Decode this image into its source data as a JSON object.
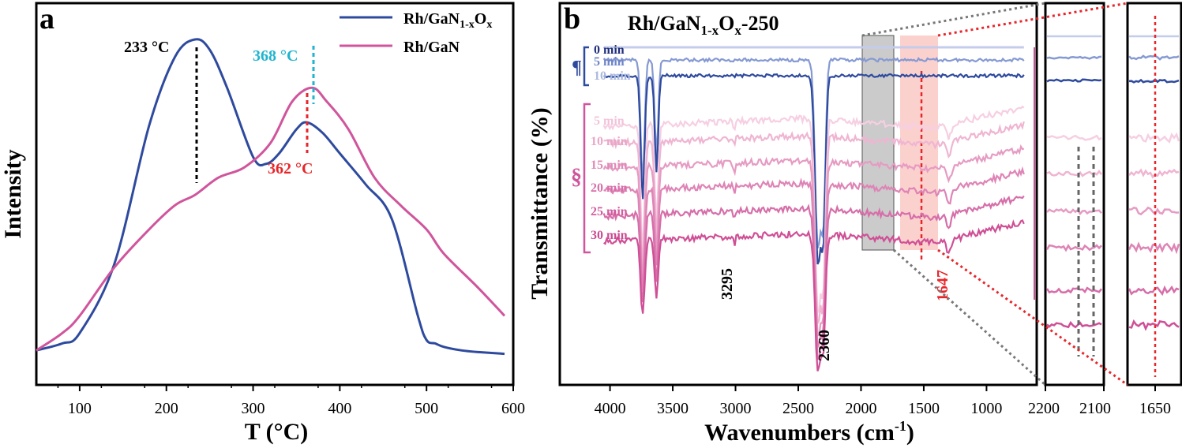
{
  "panel_a": {
    "letter": "a",
    "xlabel": "T (°C)",
    "ylabel": "Intensity",
    "xticks": [
      "100",
      "200",
      "300",
      "400",
      "500",
      "600"
    ],
    "legend": [
      {
        "label": "Rh/GaN1-xOx",
        "color": "#2e4a9e"
      },
      {
        "label": "Rh/GaN",
        "color": "#d0559c"
      }
    ],
    "annotations": {
      "peak_233": "233 °C",
      "peak_368": "368 °C",
      "peak_362": "362 °C"
    }
  },
  "panel_b": {
    "letter": "b",
    "title": "Rh/GaN1-xOx-250",
    "xlabel": "Wavenumbers (cm-1)",
    "ylabel": "Transmittance (%)",
    "xticks": [
      "4000",
      "3500",
      "3000",
      "2500",
      "2000",
      "1500",
      "1000"
    ],
    "zoom1_ticks": [
      "2200",
      "2100"
    ],
    "zoom2_ticks": [
      "1650"
    ],
    "group1_symbol": "¶",
    "group2_symbol": "§",
    "group1_labels": [
      "0 min",
      "5 min",
      "10 min"
    ],
    "group2_labels": [
      "5 min",
      "10 min",
      "15 min",
      "20 min",
      "25 min",
      "30 min"
    ],
    "annotations": {
      "band_3295": "3295",
      "band_2360": "2360",
      "band_1647": "1647"
    }
  },
  "chart_data": [
    {
      "type": "line",
      "title": "",
      "xlabel": "T (°C)",
      "ylabel": "Intensity",
      "xlim": [
        50,
        600
      ],
      "series": [
        {
          "name": "Rh/GaN1-xOx",
          "x": [
            50,
            80,
            100,
            140,
            180,
            210,
            233,
            250,
            270,
            300,
            315,
            330,
            350,
            362,
            380,
            400,
            430,
            460,
            490,
            500,
            510,
            520,
            540,
            560,
            590
          ],
          "y": [
            0.1,
            0.12,
            0.15,
            0.35,
            0.75,
            0.95,
            1.0,
            0.97,
            0.86,
            0.66,
            0.64,
            0.67,
            0.74,
            0.76,
            0.73,
            0.67,
            0.58,
            0.48,
            0.2,
            0.13,
            0.12,
            0.11,
            0.1,
            0.095,
            0.09
          ]
        },
        {
          "name": "Rh/GaN",
          "x": [
            50,
            80,
            100,
            140,
            180,
            210,
            233,
            260,
            290,
            320,
            345,
            368,
            385,
            410,
            440,
            470,
            500,
            520,
            560,
            590
          ],
          "y": [
            0.1,
            0.15,
            0.2,
            0.34,
            0.45,
            0.52,
            0.55,
            0.6,
            0.63,
            0.7,
            0.82,
            0.86,
            0.82,
            0.74,
            0.6,
            0.52,
            0.45,
            0.38,
            0.28,
            0.2
          ]
        }
      ]
    },
    {
      "type": "line",
      "title": "Rh/GaN1-xOx-250",
      "xlabel": "Wavenumbers (cm-1)",
      "ylabel": "Transmittance (%)",
      "xlim": [
        4400,
        600
      ],
      "series_names": [
        "0 min",
        "5 min",
        "10 min",
        "5 min",
        "10 min",
        "15 min",
        "20 min",
        "25 min",
        "30 min"
      ],
      "marked_bands": [
        3295,
        2360,
        1647
      ]
    }
  ]
}
